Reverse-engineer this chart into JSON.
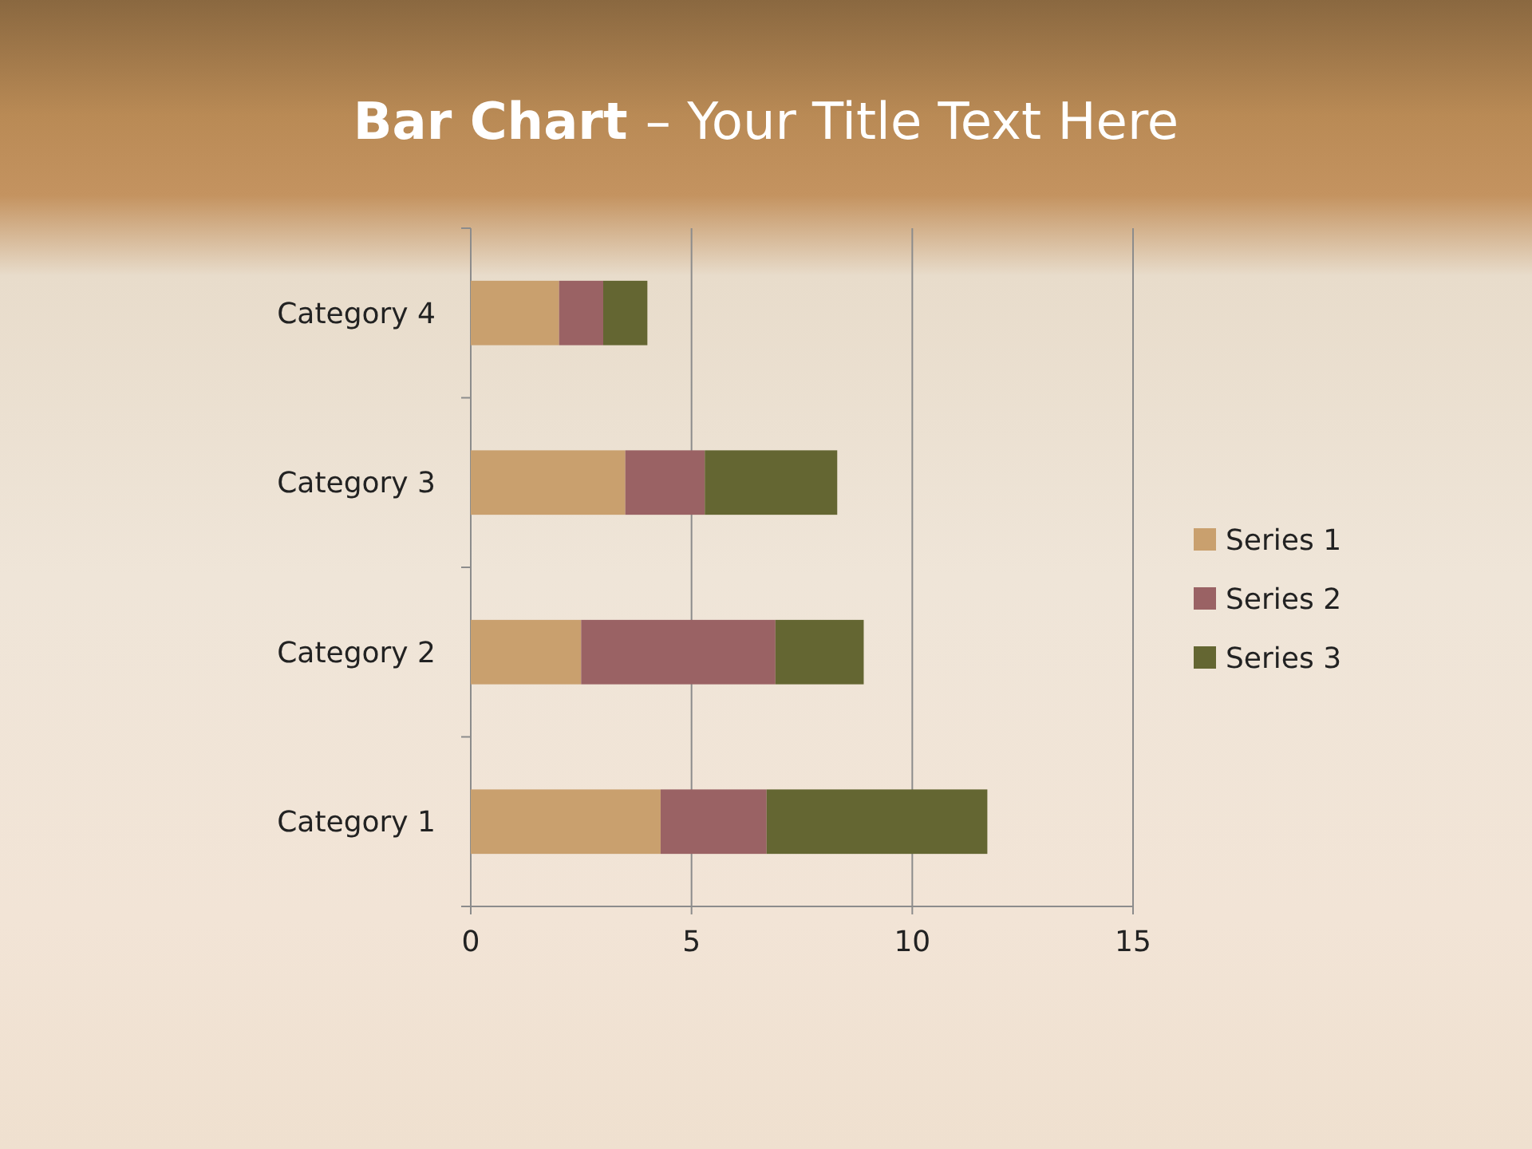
{
  "chart_data": {
    "type": "bar",
    "title": "Bar Chart – Your Title Text Here",
    "orientation": "horizontal",
    "stacked": true,
    "categories": [
      "Category 4",
      "Category 3",
      "Category 2",
      "Category 1"
    ],
    "series": [
      {
        "name": "Series 1",
        "color": "#c9a06e",
        "values": [
          2,
          3.5,
          2.5,
          4.3
        ]
      },
      {
        "name": "Series 2",
        "color": "#9a6264",
        "values": [
          1,
          1.8,
          4.4,
          2.4
        ]
      },
      {
        "name": "Series 3",
        "color": "#646632",
        "values": [
          1,
          3,
          2,
          5
        ]
      }
    ],
    "xlim": [
      0,
      15
    ],
    "xticks": [
      0,
      5,
      10,
      15
    ],
    "grid": "x",
    "legend": "right"
  }
}
